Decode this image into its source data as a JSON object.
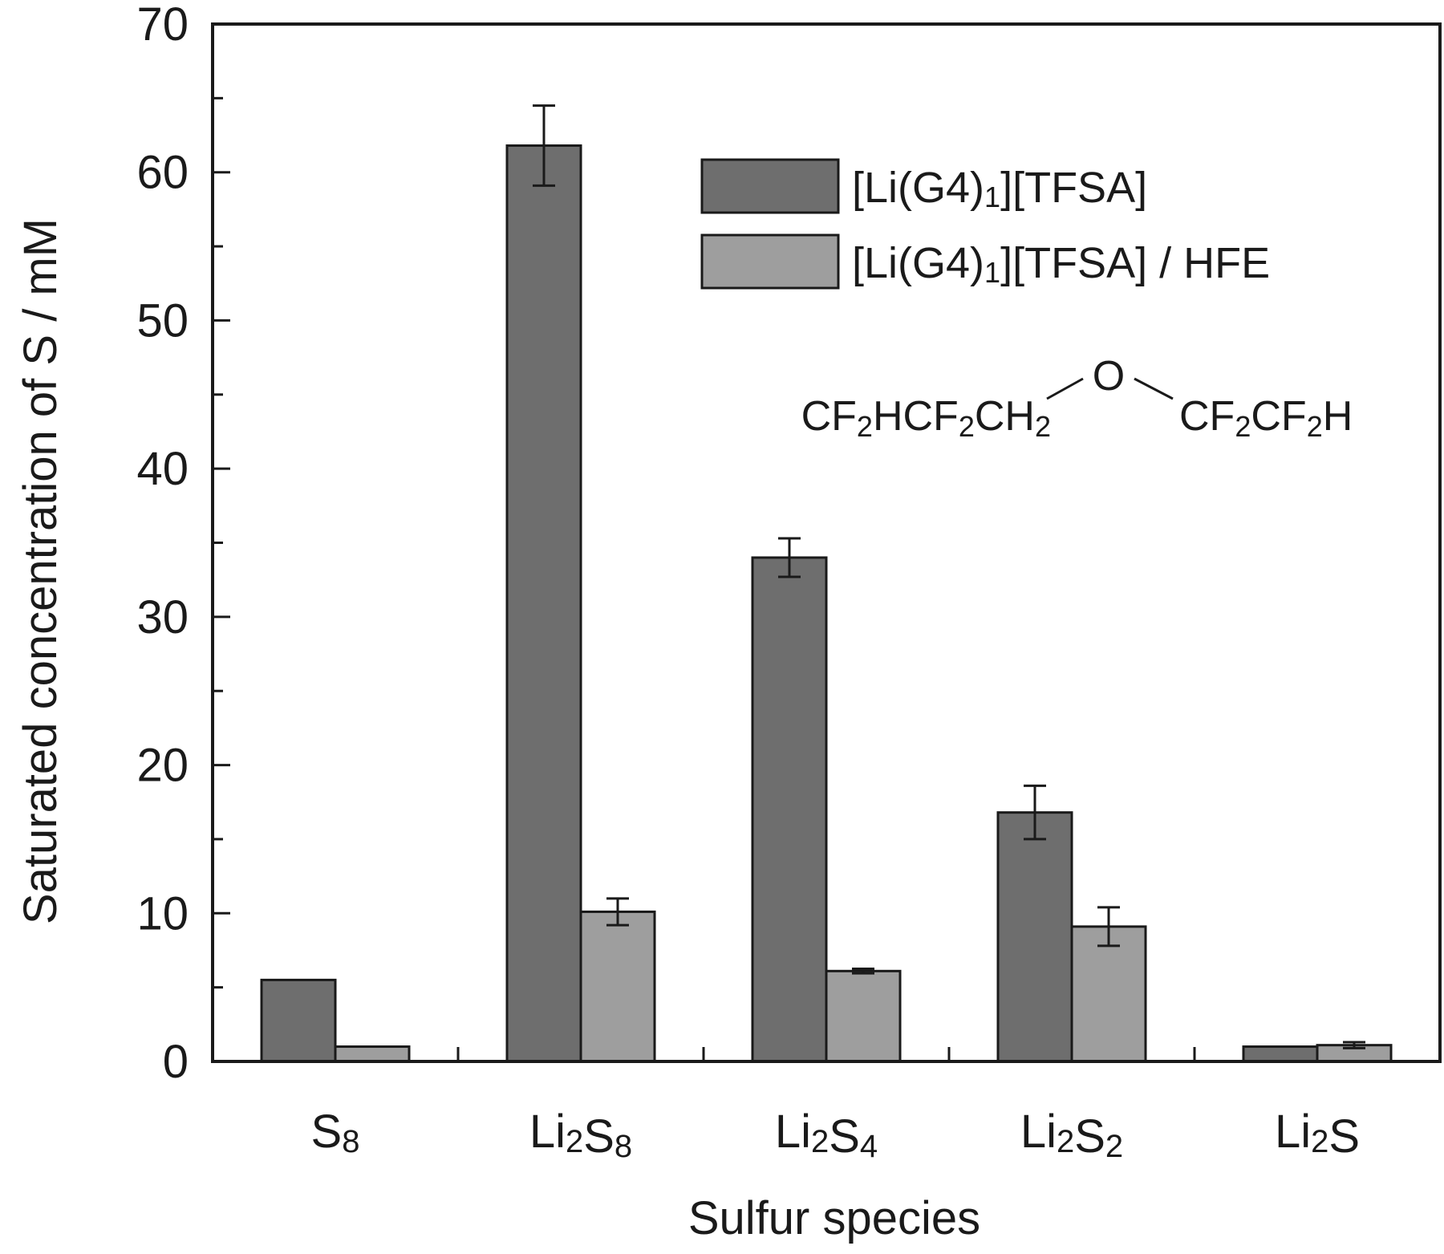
{
  "chart_data": {
    "type": "bar",
    "ylabel": "Saturated concentration of S / mM",
    "xlabel": "Sulfur species",
    "ylim": [
      0,
      70
    ],
    "yticks": [
      0,
      10,
      20,
      30,
      40,
      50,
      60,
      70
    ],
    "categories": [
      {
        "base": "S",
        "sub": "8",
        "text": "S8"
      },
      {
        "base": "Li",
        "sub": "2",
        "base2": "S",
        "sub2": "8",
        "text": "Li2S8"
      },
      {
        "base": "Li",
        "sub": "2",
        "base2": "S",
        "sub2": "4",
        "text": "Li2S4"
      },
      {
        "base": "Li",
        "sub": "2",
        "base2": "S",
        "sub2": "2",
        "text": "Li2S2"
      },
      {
        "base": "Li",
        "sub": "2",
        "base2": "S",
        "sub2": "",
        "text": "Li2S"
      }
    ],
    "series": [
      {
        "name": "[Li(G4)1][TFSA]",
        "name_parts": {
          "a": "[Li(G4)",
          "sub": "1",
          "b": "][TFSA]"
        },
        "color": "#6e6e6e",
        "values": [
          5.5,
          61.8,
          34.0,
          16.8,
          1.0
        ],
        "errors": [
          0,
          2.7,
          1.3,
          1.8,
          0
        ]
      },
      {
        "name": "[Li(G4)1][TFSA] / HFE",
        "name_parts": {
          "a": "[Li(G4)",
          "sub": "1",
          "b": "][TFSA] / HFE"
        },
        "color": "#9e9e9e",
        "values": [
          1.0,
          10.1,
          6.1,
          9.1,
          1.1
        ],
        "errors": [
          0,
          0.9,
          0.15,
          1.3,
          0.2
        ]
      }
    ],
    "legend_position": "top-right",
    "annotation": {
      "text": "CF2HCF2CH2-O-CF2CF2H",
      "oxygen": "O",
      "left_parts": [
        {
          "t": "CF",
          "s": ""
        },
        {
          "t": "",
          "s": "2"
        },
        {
          "t": "HCF",
          "s": ""
        },
        {
          "t": "",
          "s": "2"
        },
        {
          "t": "CH",
          "s": ""
        },
        {
          "t": "",
          "s": "2"
        }
      ],
      "right_parts": [
        {
          "t": "CF",
          "s": ""
        },
        {
          "t": "",
          "s": "2"
        },
        {
          "t": "CF",
          "s": ""
        },
        {
          "t": "",
          "s": "2"
        },
        {
          "t": "H",
          "s": ""
        }
      ]
    }
  }
}
